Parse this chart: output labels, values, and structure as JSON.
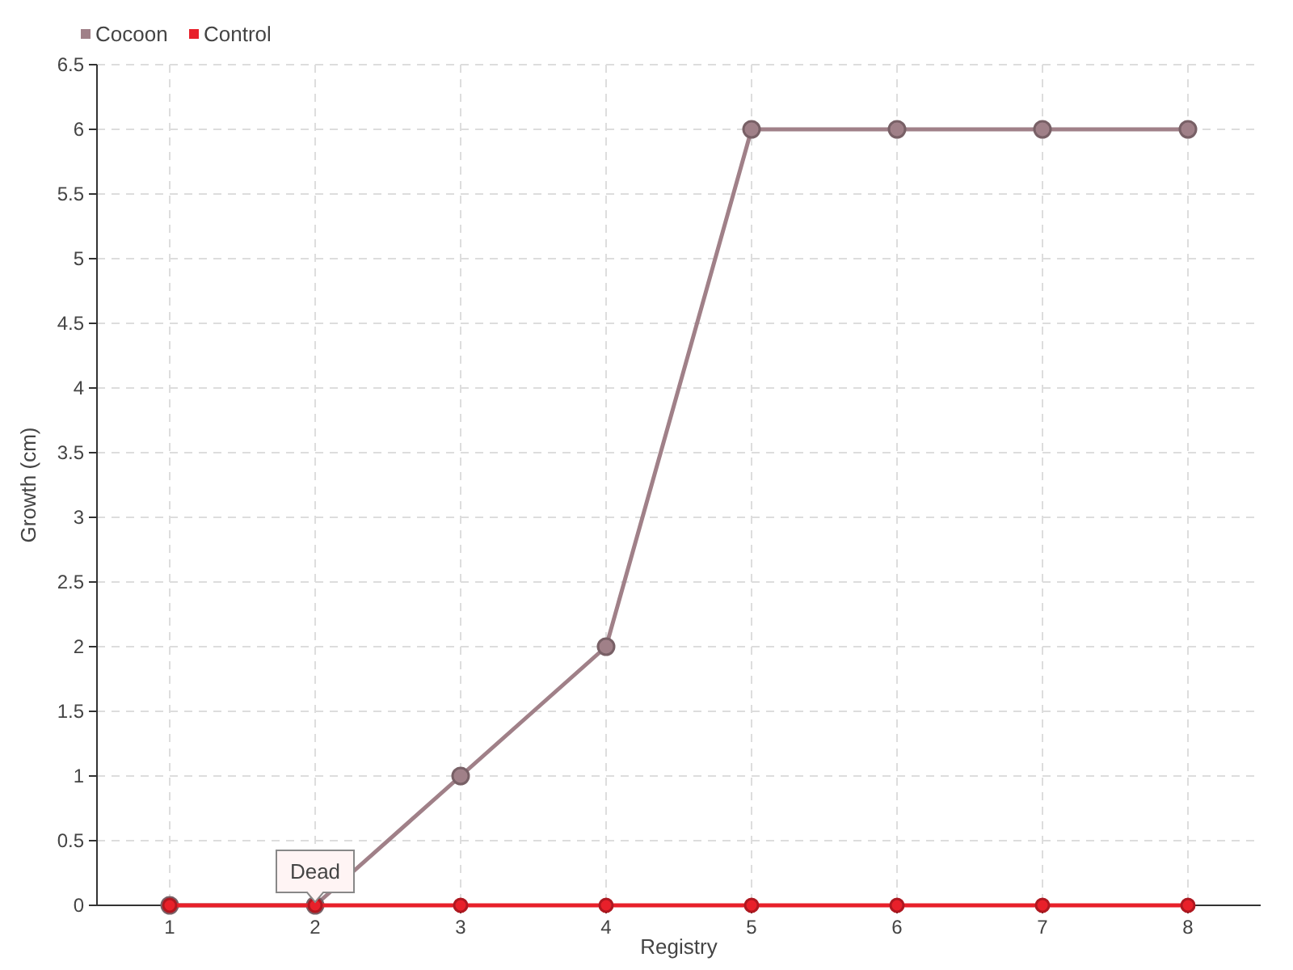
{
  "chart_data": {
    "type": "line",
    "xlabel": "Registry",
    "ylabel": "Growth (cm)",
    "categories": [
      "1",
      "2",
      "3",
      "4",
      "5",
      "6",
      "7",
      "8"
    ],
    "series": [
      {
        "name": "Cocoon",
        "color": "#a08088",
        "values": [
          0,
          0,
          1,
          2,
          6,
          6,
          6,
          6
        ]
      },
      {
        "name": "Control",
        "color": "#e8202a",
        "values": [
          0,
          0,
          0,
          0,
          0,
          0,
          0,
          0
        ]
      }
    ],
    "ylim": [
      0,
      6.5
    ],
    "yticks": [
      0,
      0.5,
      1,
      1.5,
      2,
      2.5,
      3,
      3.5,
      4,
      4.5,
      5,
      5.5,
      6,
      6.5
    ],
    "grid": true,
    "legend": "top left",
    "marker": "circle",
    "line_style": "solid",
    "annotations": [
      {
        "text": "Dead",
        "x": "2",
        "y": 0
      }
    ]
  }
}
